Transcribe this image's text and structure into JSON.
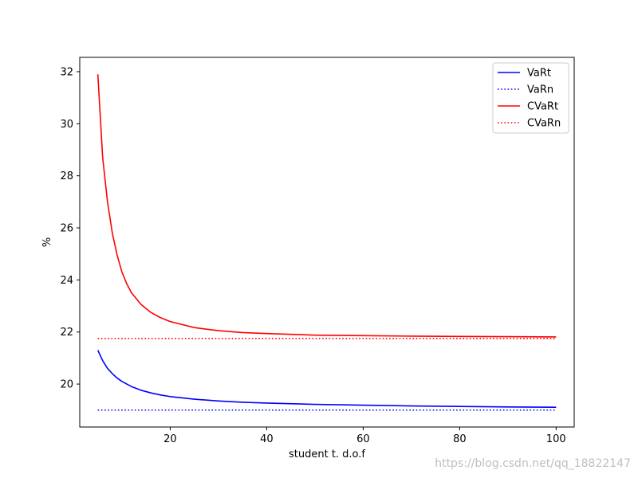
{
  "chart_data": {
    "type": "line",
    "title": "",
    "xlabel": "student t. d.o.f",
    "ylabel": "%",
    "xlim": [
      1.25,
      103.75
    ],
    "ylim": [
      18.35,
      32.55
    ],
    "xticks": [
      20,
      40,
      60,
      80,
      100
    ],
    "yticks": [
      20,
      22,
      24,
      26,
      28,
      30,
      32
    ],
    "grid": false,
    "legend": "top-right",
    "series": [
      {
        "name": "VaRt",
        "color": "#0000ff",
        "style": "solid",
        "x": [
          5,
          6,
          7,
          8,
          9,
          10,
          12,
          14,
          16,
          18,
          20,
          25,
          30,
          35,
          40,
          50,
          60,
          70,
          80,
          90,
          100
        ],
        "y": [
          21.3,
          20.9,
          20.6,
          20.4,
          20.23,
          20.1,
          19.9,
          19.76,
          19.66,
          19.58,
          19.52,
          19.42,
          19.35,
          19.3,
          19.27,
          19.22,
          19.19,
          19.16,
          19.14,
          19.12,
          19.11
        ]
      },
      {
        "name": "VaRn",
        "color": "#0000ff",
        "style": "dotted",
        "x": [
          5,
          100
        ],
        "y": [
          19.0,
          19.0
        ]
      },
      {
        "name": "CVaRt",
        "color": "#ff0000",
        "style": "solid",
        "x": [
          5,
          6,
          7,
          8,
          9,
          10,
          11,
          12,
          14,
          16,
          18,
          20,
          25,
          30,
          35,
          40,
          50,
          60,
          70,
          80,
          90,
          100
        ],
        "y": [
          31.9,
          28.7,
          27.0,
          25.8,
          24.95,
          24.3,
          23.85,
          23.5,
          23.05,
          22.75,
          22.55,
          22.4,
          22.17,
          22.05,
          21.98,
          21.94,
          21.88,
          21.86,
          21.84,
          21.83,
          21.82,
          21.81
        ]
      },
      {
        "name": "CVaRn",
        "color": "#ff0000",
        "style": "dotted",
        "x": [
          5,
          100
        ],
        "y": [
          21.75,
          21.75
        ]
      }
    ]
  },
  "watermark": "https://blog.csdn.net/qq_18822147"
}
